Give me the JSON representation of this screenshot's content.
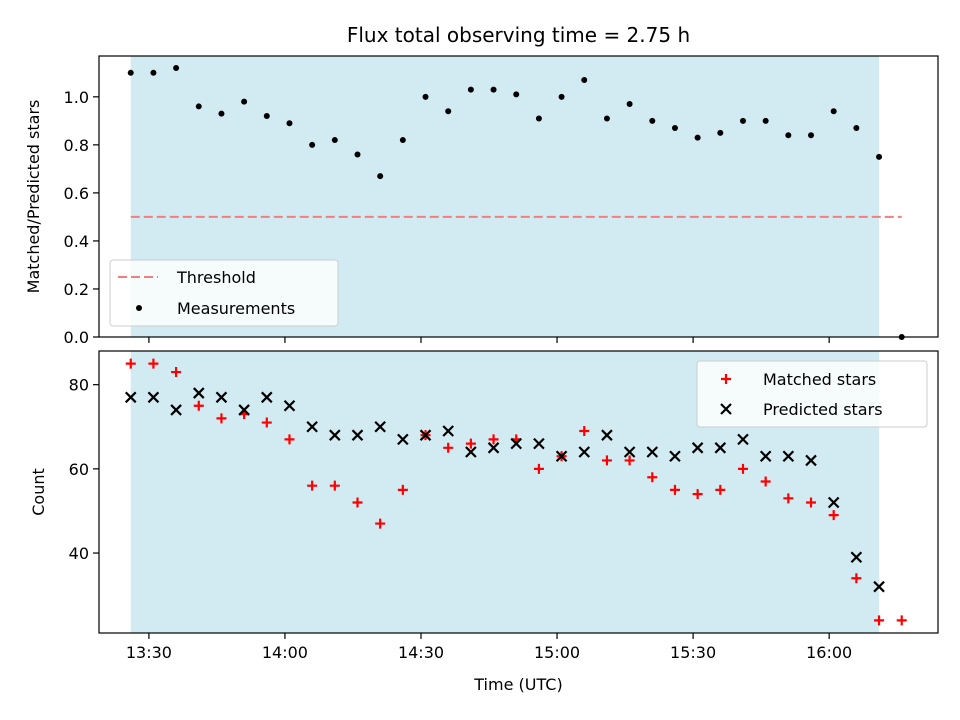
{
  "chart_data": [
    {
      "type": "scatter",
      "title": "Flux total observing time = 2.75 h",
      "xlabel": "",
      "ylabel": "Matched/Predicted stars",
      "xlim": [
        "13:19",
        "16:24"
      ],
      "ylim": [
        0,
        1.17
      ],
      "xticks": [
        "13:30",
        "14:00",
        "14:30",
        "15:00",
        "15:30",
        "16:00"
      ],
      "yticks": [
        0.0,
        0.2,
        0.4,
        0.6,
        0.8,
        1.0
      ],
      "ytick_labels": [
        "0.0",
        "0.2",
        "0.4",
        "0.6",
        "0.8",
        "1.0"
      ],
      "observing_window": {
        "start": "13:26",
        "end": "16:11",
        "color": "#add8e6"
      },
      "threshold": {
        "name": "Threshold",
        "value": 0.5,
        "x_range": [
          "13:26",
          "16:16"
        ],
        "color": "#f08080",
        "style": "dashed"
      },
      "series": [
        {
          "name": "Measurements",
          "color": "#000000",
          "marker": "dot",
          "x": [
            "13:26",
            "13:31",
            "13:36",
            "13:41",
            "13:46",
            "13:51",
            "13:56",
            "14:01",
            "14:06",
            "14:11",
            "14:16",
            "14:21",
            "14:26",
            "14:31",
            "14:36",
            "14:41",
            "14:46",
            "14:51",
            "14:56",
            "15:01",
            "15:06",
            "15:11",
            "15:16",
            "15:21",
            "15:26",
            "15:31",
            "15:36",
            "15:41",
            "15:46",
            "15:51",
            "15:56",
            "16:01",
            "16:06",
            "16:11",
            "16:16"
          ],
          "y": [
            1.1,
            1.1,
            1.12,
            0.96,
            0.93,
            0.98,
            0.92,
            0.89,
            0.8,
            0.82,
            0.76,
            0.67,
            0.82,
            1.0,
            0.94,
            1.03,
            1.03,
            1.01,
            0.91,
            1.0,
            1.07,
            0.91,
            0.97,
            0.9,
            0.87,
            0.83,
            0.85,
            0.9,
            0.9,
            0.84,
            0.84,
            0.94,
            0.87,
            0.75,
            0.0
          ]
        }
      ],
      "legend": {
        "position": "lower-left",
        "entries": [
          "Threshold",
          "Measurements"
        ]
      },
      "grid": false
    },
    {
      "type": "scatter",
      "xlabel": "Time (UTC)",
      "ylabel": "Count",
      "xlim": [
        "13:19",
        "16:24"
      ],
      "ylim": [
        21,
        88
      ],
      "xticks": [
        "13:30",
        "14:00",
        "14:30",
        "15:00",
        "15:30",
        "16:00"
      ],
      "yticks": [
        40,
        60,
        80
      ],
      "ytick_labels": [
        "40",
        "60",
        "80"
      ],
      "observing_window": {
        "start": "13:26",
        "end": "16:11",
        "color": "#add8e6"
      },
      "series": [
        {
          "name": "Matched stars",
          "color": "#ff0000",
          "marker": "plus",
          "x": [
            "13:26",
            "13:31",
            "13:36",
            "13:41",
            "13:46",
            "13:51",
            "13:56",
            "14:01",
            "14:06",
            "14:11",
            "14:16",
            "14:21",
            "14:26",
            "14:31",
            "14:36",
            "14:41",
            "14:46",
            "14:51",
            "14:56",
            "15:01",
            "15:06",
            "15:11",
            "15:16",
            "15:21",
            "15:26",
            "15:31",
            "15:36",
            "15:41",
            "15:46",
            "15:51",
            "15:56",
            "16:01",
            "16:06",
            "16:11",
            "16:16"
          ],
          "y": [
            85,
            85,
            83,
            75,
            72,
            73,
            71,
            67,
            56,
            56,
            52,
            47,
            55,
            68,
            65,
            66,
            67,
            67,
            60,
            63,
            69,
            62,
            62,
            58,
            55,
            54,
            55,
            60,
            57,
            53,
            52,
            49,
            34,
            24,
            24
          ]
        },
        {
          "name": "Predicted stars",
          "color": "#000000",
          "marker": "x",
          "x": [
            "13:26",
            "13:31",
            "13:36",
            "13:41",
            "13:46",
            "13:51",
            "13:56",
            "14:01",
            "14:06",
            "14:11",
            "14:16",
            "14:21",
            "14:26",
            "14:31",
            "14:36",
            "14:41",
            "14:46",
            "14:51",
            "14:56",
            "15:01",
            "15:06",
            "15:11",
            "15:16",
            "15:21",
            "15:26",
            "15:31",
            "15:36",
            "15:41",
            "15:46",
            "15:51",
            "15:56",
            "16:01",
            "16:06",
            "16:11"
          ],
          "y": [
            77,
            77,
            74,
            78,
            77,
            74,
            77,
            75,
            70,
            68,
            68,
            70,
            67,
            68,
            69,
            64,
            65,
            66,
            66,
            63,
            64,
            68,
            64,
            64,
            63,
            65,
            65,
            67,
            63,
            63,
            62,
            52,
            39,
            32
          ]
        }
      ],
      "legend": {
        "position": "upper-right",
        "entries": [
          "Matched stars",
          "Predicted stars"
        ]
      },
      "grid": false
    }
  ]
}
